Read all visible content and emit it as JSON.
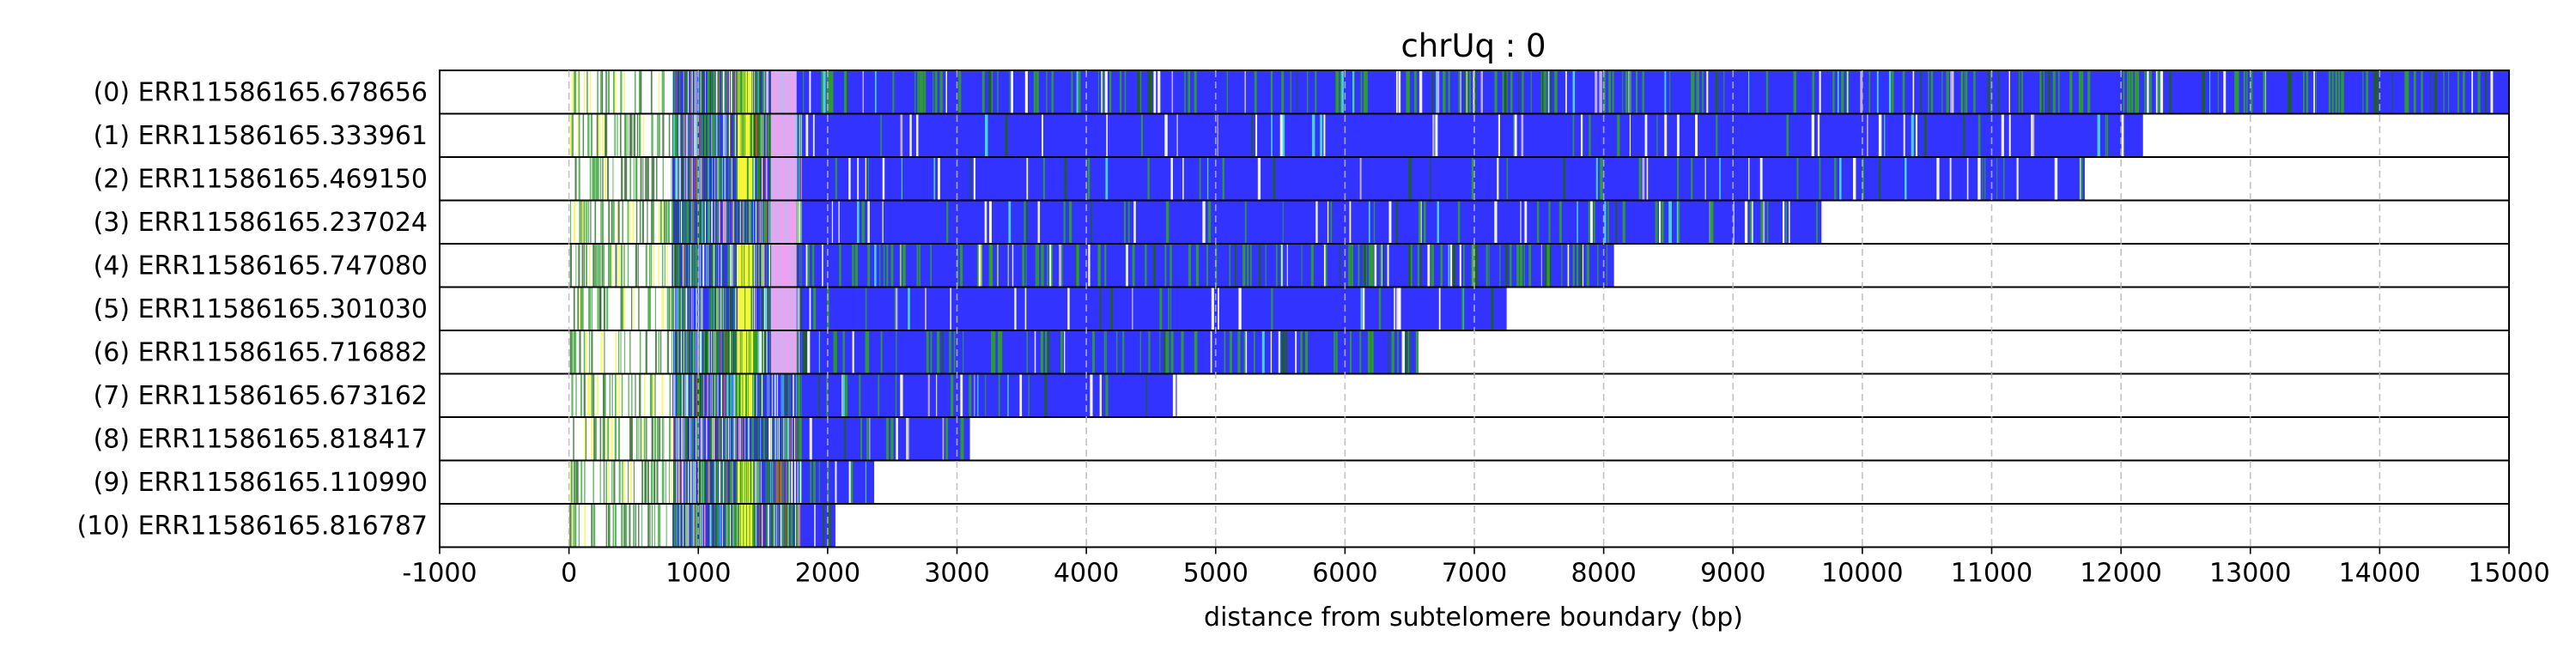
{
  "chart_data": {
    "type": "heatmap",
    "title": "chrUq : 0",
    "xlabel": "distance from subtelomere boundary (bp)",
    "ylabel": "",
    "xlim": [
      -1000,
      15000
    ],
    "xticks": [
      -1000,
      0,
      1000,
      2000,
      3000,
      4000,
      5000,
      6000,
      7000,
      8000,
      9000,
      10000,
      11000,
      12000,
      13000,
      14000,
      15000
    ],
    "grid": "vertical dashed",
    "legend": "none",
    "colors": {
      "repeat": "#3333ff",
      "variant_green": "#2e9e2e",
      "dark_green": "#1f5f1f",
      "lime": "#9acd32",
      "yellow": "#f5f53a",
      "pink": "#f0a0f0",
      "cyan": "#4ad9d9",
      "lavender": "#c8b4f0",
      "red": "#e04a4a",
      "white": "#ffffff"
    },
    "reads": [
      {
        "label": "(0) ERR11586165.678656",
        "start": 0,
        "end": 15000,
        "green_density": 0.55
      },
      {
        "label": "(1) ERR11586165.333961",
        "start": 0,
        "end": 12170,
        "green_density": 0.05
      },
      {
        "label": "(2) ERR11586165.469150",
        "start": 0,
        "end": 11720,
        "green_density": 0.12
      },
      {
        "label": "(3) ERR11586165.237024",
        "start": 0,
        "end": 9700,
        "green_density": 0.15
      },
      {
        "label": "(4) ERR11586165.747080",
        "start": 0,
        "end": 8080,
        "green_density": 0.6
      },
      {
        "label": "(5) ERR11586165.301030",
        "start": 0,
        "end": 7250,
        "green_density": 0.08
      },
      {
        "label": "(6) ERR11586165.716882",
        "start": 0,
        "end": 6550,
        "green_density": 0.45
      },
      {
        "label": "(7) ERR11586165.673162",
        "start": 0,
        "end": 4700,
        "green_density": 0.2
      },
      {
        "label": "(8) ERR11586165.818417",
        "start": 0,
        "end": 3100,
        "green_density": 0.25
      },
      {
        "label": "(9) ERR11586165.110990",
        "start": 0,
        "end": 2360,
        "green_density": 0.3
      },
      {
        "label": "(10) ERR11586165.816787",
        "start": 0,
        "end": 2060,
        "green_density": 0.3
      }
    ]
  }
}
